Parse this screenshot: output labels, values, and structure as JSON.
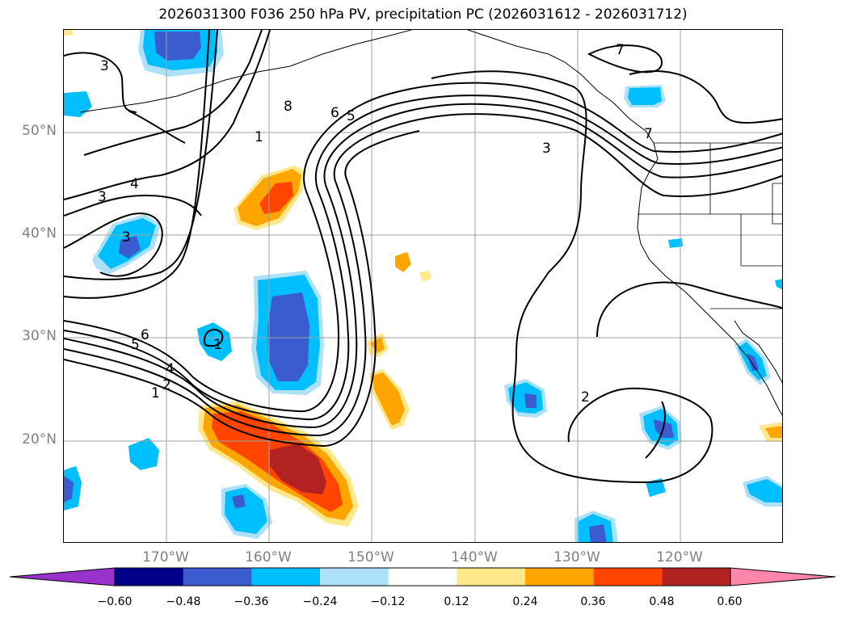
{
  "title": "2026031300 F036 250 hPa PV, precipitation PC (2026031612 - 2026031712)",
  "lat_labels": [
    "50°N",
    "40°N",
    "30°N",
    "20°N"
  ],
  "lon_labels": [
    "170°W",
    "160°W",
    "150°W",
    "140°W",
    "130°W",
    "120°W"
  ],
  "contour_labels": [
    "3",
    "8",
    "6",
    "5",
    "1",
    "4",
    "3",
    "3",
    "6",
    "5",
    "4",
    "2",
    "1",
    "1",
    "3",
    "7",
    "7",
    "2"
  ],
  "colorbar": {
    "colors": [
      "#9932cc",
      "#00008b",
      "#3b5bd1",
      "#00bfff",
      "#ade1fa",
      "#ffffff",
      "#ffe88a",
      "#ffa500",
      "#ff4500",
      "#b22222",
      "#ff85aa"
    ],
    "ticks": [
      "−0.60",
      "−0.48",
      "−0.36",
      "−0.24",
      "−0.12",
      "0.12",
      "0.24",
      "0.36",
      "0.48",
      "0.60"
    ]
  },
  "map": {
    "projection": "Lat/Lon",
    "lat_range": [
      10,
      60
    ],
    "lon_range": [
      -180,
      -110
    ],
    "grid": true,
    "fields": [
      "250 hPa PV contours",
      "precipitation PC shading"
    ]
  }
}
